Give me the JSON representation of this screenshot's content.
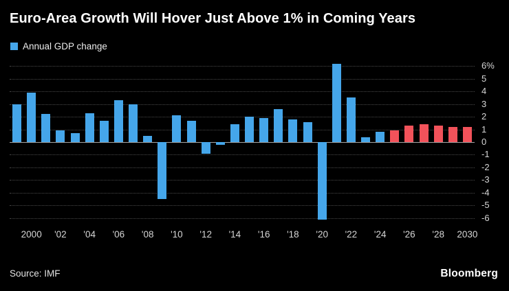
{
  "header": {
    "title": "Euro-Area Growth Will Hover Just Above 1% in Coming Years"
  },
  "legend": {
    "label": "Annual GDP change",
    "swatch_color": "#45a6ea"
  },
  "footer": {
    "source": "Source: IMF",
    "brand": "Bloomberg"
  },
  "colors": {
    "background": "#000000",
    "bar_actual": "#45a6ea",
    "bar_forecast": "#f2525a",
    "grid": "#4a4a4a",
    "zero_line": "#a6a6a6",
    "title_text": "#ffffff",
    "axis_text": "#d6d6d6"
  },
  "chart_data": {
    "type": "bar",
    "title": "Euro-Area Growth Will Hover Just Above 1% in Coming Years",
    "legend_entries": [
      "Annual GDP change"
    ],
    "legend_position": "top-left",
    "grid": "dotted-horizontal",
    "ylim": [
      -6.45,
      6.45
    ],
    "yticks": [
      {
        "value": 6,
        "label": "6%"
      },
      {
        "value": 5,
        "label": "5"
      },
      {
        "value": 4,
        "label": "4"
      },
      {
        "value": 3,
        "label": "3"
      },
      {
        "value": 2,
        "label": "2"
      },
      {
        "value": 1,
        "label": "1"
      },
      {
        "value": 0,
        "label": "0"
      },
      {
        "value": -1,
        "label": "-1"
      },
      {
        "value": -2,
        "label": "-2"
      },
      {
        "value": -3,
        "label": "-3"
      },
      {
        "value": -4,
        "label": "-4"
      },
      {
        "value": -5,
        "label": "-5"
      },
      {
        "value": -6,
        "label": "-6"
      }
    ],
    "x": [
      1999,
      2000,
      2001,
      2002,
      2003,
      2004,
      2005,
      2006,
      2007,
      2008,
      2009,
      2010,
      2011,
      2012,
      2013,
      2014,
      2015,
      2016,
      2017,
      2018,
      2019,
      2020,
      2021,
      2022,
      2023,
      2024,
      2025,
      2026,
      2027,
      2028,
      2029,
      2030
    ],
    "series": [
      {
        "name": "Annual GDP change",
        "values": [
          3.0,
          3.9,
          2.2,
          0.9,
          0.7,
          2.3,
          1.7,
          3.3,
          3.0,
          0.5,
          -4.5,
          2.1,
          1.7,
          -0.9,
          -0.2,
          1.4,
          2.0,
          1.9,
          2.6,
          1.8,
          1.6,
          -6.1,
          6.2,
          3.5,
          0.4,
          0.8,
          0.9,
          1.3,
          1.4,
          1.3,
          1.2,
          1.2
        ],
        "forecast_start_year": 2025,
        "colors_by_segment": {
          "actual": "#45a6ea",
          "forecast": "#f2525a"
        }
      }
    ],
    "xticks": [
      {
        "year": 2000,
        "label": "2000"
      },
      {
        "year": 2002,
        "label": "'02"
      },
      {
        "year": 2004,
        "label": "'04"
      },
      {
        "year": 2006,
        "label": "'06"
      },
      {
        "year": 2008,
        "label": "'08"
      },
      {
        "year": 2010,
        "label": "'10"
      },
      {
        "year": 2012,
        "label": "'12"
      },
      {
        "year": 2014,
        "label": "'14"
      },
      {
        "year": 2016,
        "label": "'16"
      },
      {
        "year": 2018,
        "label": "'18"
      },
      {
        "year": 2020,
        "label": "'20"
      },
      {
        "year": 2022,
        "label": "'22"
      },
      {
        "year": 2024,
        "label": "'24"
      },
      {
        "year": 2026,
        "label": "'26"
      },
      {
        "year": 2028,
        "label": "'28"
      },
      {
        "year": 2030,
        "label": "2030"
      }
    ]
  }
}
